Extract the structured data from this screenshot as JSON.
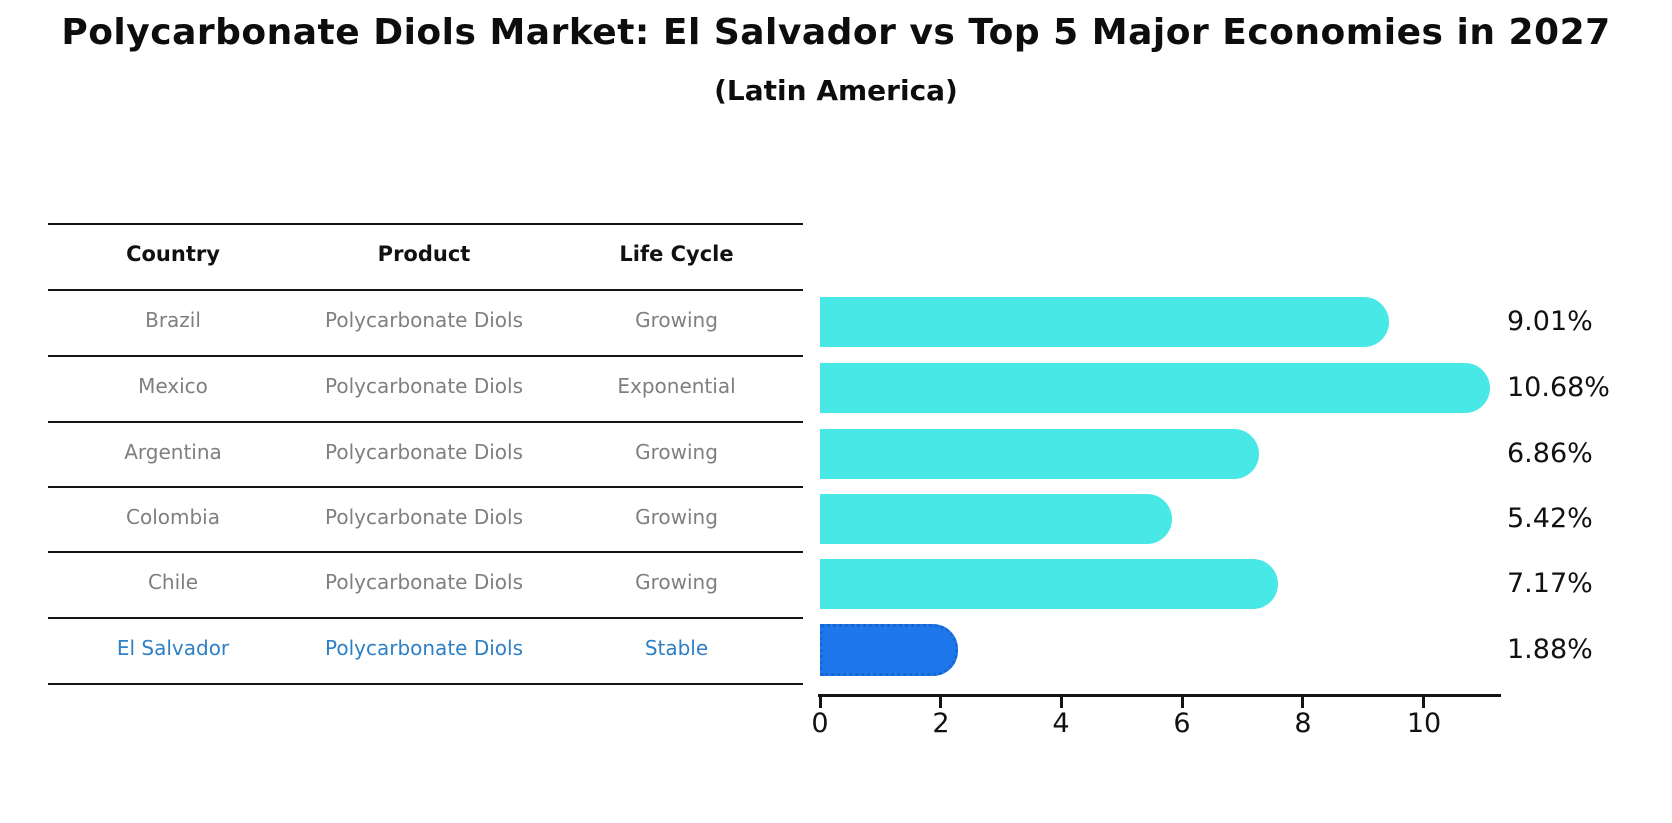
{
  "title": "Polycarbonate Diols Market: El Salvador vs Top 5 Major Economies in 2027",
  "subtitle": "(Latin America)",
  "table": {
    "headers": [
      "Country",
      "Product",
      "Life Cycle"
    ],
    "rows": [
      {
        "country": "Brazil",
        "product": "Polycarbonate Diols",
        "life_cycle": "Growing",
        "highlighted": false
      },
      {
        "country": "Mexico",
        "product": "Polycarbonate Diols",
        "life_cycle": "Exponential",
        "highlighted": false
      },
      {
        "country": "Argentina",
        "product": "Polycarbonate Diols",
        "life_cycle": "Growing",
        "highlighted": false
      },
      {
        "country": "Colombia",
        "product": "Polycarbonate Diols",
        "life_cycle": "Growing",
        "highlighted": false
      },
      {
        "country": "Chile",
        "product": "Polycarbonate Diols",
        "life_cycle": "Growing",
        "highlighted": false
      },
      {
        "country": "El Salvador",
        "product": "Polycarbonate Diols",
        "life_cycle": "Stable",
        "highlighted": true
      }
    ]
  },
  "chart_data": {
    "type": "bar",
    "orientation": "horizontal",
    "title": "Polycarbonate Diols Market: El Salvador vs Top 5 Major Economies in 2027 (Latin America)",
    "categories": [
      "Brazil",
      "Mexico",
      "Argentina",
      "Colombia",
      "Chile",
      "El Salvador"
    ],
    "values": [
      9.01,
      10.68,
      6.86,
      5.42,
      7.17,
      1.88
    ],
    "value_labels": [
      "9.01%",
      "10.68%",
      "6.86%",
      "5.42%",
      "7.17%",
      "1.88%"
    ],
    "x_ticks": [
      "0",
      "2",
      "4",
      "6",
      "8",
      "10"
    ],
    "xlim": [
      0,
      11.2
    ],
    "grid": false,
    "legend": "none",
    "highlight_index": 5
  },
  "colors": {
    "bar": "#48E8E6",
    "highlight_bar": "#1E78EB",
    "highlight_border": "#1766D2",
    "highlight_text": "#2E80C6",
    "cell_text": "#7F7F7F",
    "header_text": "#111111",
    "line": "#141414"
  }
}
